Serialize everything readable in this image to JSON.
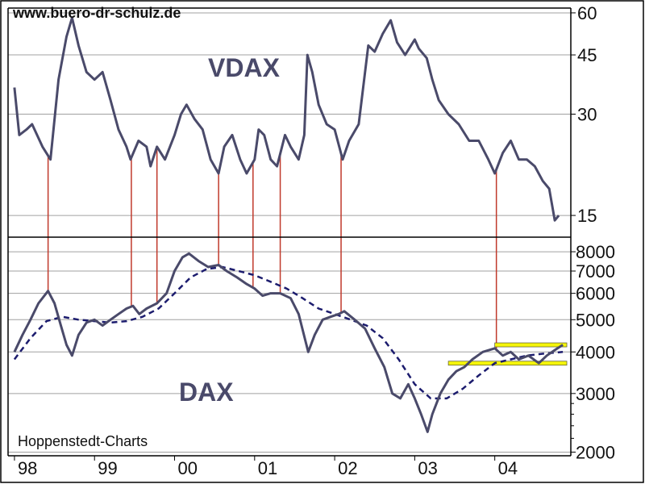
{
  "header": {
    "source_url": "www.buero-dr-schulz.de"
  },
  "footer": {
    "credit": "Hoppenstedt-Charts"
  },
  "colors": {
    "price_line": "#4a4a6a",
    "moving_average": "#1c1c6e",
    "signal_lines": "#c0392b",
    "support_band": "#f5f50a",
    "grid": "#a0a0a0",
    "frame": "#000000"
  },
  "chart_data": [
    {
      "type": "line",
      "title": "VDAX",
      "scale": "log",
      "ylim": [
        13,
        62
      ],
      "y_ticks": [
        15,
        30,
        45,
        60
      ],
      "y_tick_labels": [
        "15",
        "30",
        "45",
        "60"
      ],
      "x_ticks": [
        "98",
        "99",
        "00",
        "01",
        "02",
        "03",
        "04"
      ],
      "grid": true,
      "series": [
        {
          "values_by_time": [
            [
              1998.0,
              36
            ],
            [
              1998.06,
              26
            ],
            [
              1998.15,
              27
            ],
            [
              1998.22,
              28
            ],
            [
              1998.35,
              24
            ],
            [
              1998.45,
              22
            ],
            [
              1998.55,
              38
            ],
            [
              1998.65,
              51
            ],
            [
              1998.72,
              58
            ],
            [
              1998.8,
              48
            ],
            [
              1998.9,
              40
            ],
            [
              1999.0,
              38
            ],
            [
              1999.1,
              40
            ],
            [
              1999.2,
              33
            ],
            [
              1999.3,
              27
            ],
            [
              1999.4,
              24
            ],
            [
              1999.45,
              22
            ],
            [
              1999.55,
              25
            ],
            [
              1999.65,
              24
            ],
            [
              1999.7,
              21
            ],
            [
              1999.78,
              24
            ],
            [
              1999.88,
              22
            ],
            [
              2000.0,
              26
            ],
            [
              2000.08,
              30
            ],
            [
              2000.15,
              32
            ],
            [
              2000.25,
              29
            ],
            [
              2000.35,
              27
            ],
            [
              2000.45,
              22
            ],
            [
              2000.55,
              20
            ],
            [
              2000.62,
              24
            ],
            [
              2000.72,
              26
            ],
            [
              2000.82,
              22
            ],
            [
              2000.9,
              20
            ],
            [
              2001.0,
              22
            ],
            [
              2001.05,
              27
            ],
            [
              2001.12,
              26
            ],
            [
              2001.2,
              22
            ],
            [
              2001.28,
              21
            ],
            [
              2001.38,
              26
            ],
            [
              2001.45,
              24
            ],
            [
              2001.55,
              22
            ],
            [
              2001.62,
              26
            ],
            [
              2001.66,
              45
            ],
            [
              2001.72,
              40
            ],
            [
              2001.8,
              32
            ],
            [
              2001.9,
              28
            ],
            [
              2002.0,
              27
            ],
            [
              2002.1,
              22
            ],
            [
              2002.18,
              25
            ],
            [
              2002.3,
              28
            ],
            [
              2002.42,
              48
            ],
            [
              2002.5,
              46
            ],
            [
              2002.6,
              52
            ],
            [
              2002.7,
              57
            ],
            [
              2002.78,
              49
            ],
            [
              2002.88,
              45
            ],
            [
              2003.0,
              50
            ],
            [
              2003.05,
              47
            ],
            [
              2003.15,
              44
            ],
            [
              2003.22,
              38
            ],
            [
              2003.3,
              33
            ],
            [
              2003.42,
              30
            ],
            [
              2003.55,
              28
            ],
            [
              2003.68,
              25
            ],
            [
              2003.8,
              25
            ],
            [
              2003.92,
              22
            ],
            [
              2004.0,
              20
            ],
            [
              2004.1,
              23
            ],
            [
              2004.2,
              25
            ],
            [
              2004.3,
              22
            ],
            [
              2004.4,
              22
            ],
            [
              2004.5,
              21
            ],
            [
              2004.6,
              19
            ],
            [
              2004.68,
              18
            ],
            [
              2004.75,
              14.5
            ],
            [
              2004.8,
              15
            ]
          ]
        }
      ]
    },
    {
      "type": "line",
      "title": "DAX",
      "scale": "log",
      "ylim": [
        1950,
        8800
      ],
      "y_ticks": [
        2000,
        3000,
        4000,
        5000,
        6000,
        7000,
        8000
      ],
      "y_tick_labels": [
        "2000",
        "3000",
        "4000",
        "5000",
        "6000",
        "7000",
        "8000"
      ],
      "x_ticks": [
        "98",
        "99",
        "00",
        "01",
        "02",
        "03",
        "04"
      ],
      "grid": true,
      "series": [
        {
          "values_by_time": [
            [
              1998.0,
              4000
            ],
            [
              1998.1,
              4500
            ],
            [
              1998.2,
              5000
            ],
            [
              1998.3,
              5600
            ],
            [
              1998.42,
              6100
            ],
            [
              1998.5,
              5600
            ],
            [
              1998.58,
              4800
            ],
            [
              1998.65,
              4200
            ],
            [
              1998.72,
              3900
            ],
            [
              1998.8,
              4500
            ],
            [
              1998.9,
              4900
            ],
            [
              1999.0,
              5000
            ],
            [
              1999.1,
              4800
            ],
            [
              1999.2,
              5000
            ],
            [
              1999.3,
              5200
            ],
            [
              1999.4,
              5400
            ],
            [
              1999.48,
              5500
            ],
            [
              1999.56,
              5200
            ],
            [
              1999.65,
              5400
            ],
            [
              1999.78,
              5600
            ],
            [
              1999.9,
              6000
            ],
            [
              2000.0,
              7000
            ],
            [
              2000.1,
              7700
            ],
            [
              2000.18,
              7900
            ],
            [
              2000.3,
              7500
            ],
            [
              2000.42,
              7200
            ],
            [
              2000.55,
              7300
            ],
            [
              2000.65,
              7000
            ],
            [
              2000.78,
              6700
            ],
            [
              2000.9,
              6400
            ],
            [
              2001.0,
              6200
            ],
            [
              2001.1,
              5900
            ],
            [
              2001.2,
              6000
            ],
            [
              2001.32,
              6000
            ],
            [
              2001.45,
              5800
            ],
            [
              2001.55,
              5200
            ],
            [
              2001.67,
              4000
            ],
            [
              2001.75,
              4500
            ],
            [
              2001.85,
              5000
            ],
            [
              2001.95,
              5100
            ],
            [
              2002.05,
              5200
            ],
            [
              2002.12,
              5300
            ],
            [
              2002.25,
              5000
            ],
            [
              2002.38,
              4700
            ],
            [
              2002.5,
              4100
            ],
            [
              2002.62,
              3600
            ],
            [
              2002.72,
              3000
            ],
            [
              2002.82,
              2900
            ],
            [
              2002.92,
              3200
            ],
            [
              2003.0,
              2900
            ],
            [
              2003.08,
              2600
            ],
            [
              2003.16,
              2300
            ],
            [
              2003.22,
              2600
            ],
            [
              2003.32,
              3000
            ],
            [
              2003.42,
              3300
            ],
            [
              2003.52,
              3500
            ],
            [
              2003.62,
              3600
            ],
            [
              2003.72,
              3800
            ],
            [
              2003.85,
              4000
            ],
            [
              2004.0,
              4100
            ],
            [
              2004.1,
              3900
            ],
            [
              2004.2,
              4000
            ],
            [
              2004.3,
              3800
            ],
            [
              2004.42,
              3900
            ],
            [
              2004.55,
              3700
            ],
            [
              2004.65,
              3900
            ],
            [
              2004.75,
              4050
            ],
            [
              2004.85,
              4200
            ]
          ]
        },
        {
          "name": "moving-average",
          "values_by_time": [
            [
              1998.0,
              3800
            ],
            [
              1998.2,
              4400
            ],
            [
              1998.4,
              4950
            ],
            [
              1998.6,
              5100
            ],
            [
              1998.8,
              5000
            ],
            [
              1999.0,
              4950
            ],
            [
              1999.2,
              4900
            ],
            [
              1999.4,
              4950
            ],
            [
              1999.6,
              5100
            ],
            [
              1999.8,
              5400
            ],
            [
              2000.0,
              6000
            ],
            [
              2000.2,
              6700
            ],
            [
              2000.4,
              7100
            ],
            [
              2000.6,
              7200
            ],
            [
              2000.8,
              7000
            ],
            [
              2001.0,
              6800
            ],
            [
              2001.2,
              6500
            ],
            [
              2001.4,
              6200
            ],
            [
              2001.6,
              5800
            ],
            [
              2001.8,
              5400
            ],
            [
              2002.0,
              5200
            ],
            [
              2002.2,
              5000
            ],
            [
              2002.4,
              4800
            ],
            [
              2002.6,
              4400
            ],
            [
              2002.8,
              3800
            ],
            [
              2003.0,
              3200
            ],
            [
              2003.2,
              2900
            ],
            [
              2003.4,
              2900
            ],
            [
              2003.6,
              3100
            ],
            [
              2003.8,
              3400
            ],
            [
              2004.0,
              3700
            ],
            [
              2004.2,
              3800
            ],
            [
              2004.4,
              3900
            ],
            [
              2004.6,
              3950
            ],
            [
              2004.85,
              4000
            ]
          ]
        }
      ],
      "signal_dates": [
        1998.42,
        1999.46,
        1999.78,
        2000.55,
        2000.98,
        2001.32,
        2002.08,
        2004.02
      ],
      "support_bands": [
        {
          "from": 2004.0,
          "to": 2004.9,
          "value": 4200
        },
        {
          "from": 2003.42,
          "to": 2004.9,
          "value": 3700
        }
      ]
    }
  ]
}
